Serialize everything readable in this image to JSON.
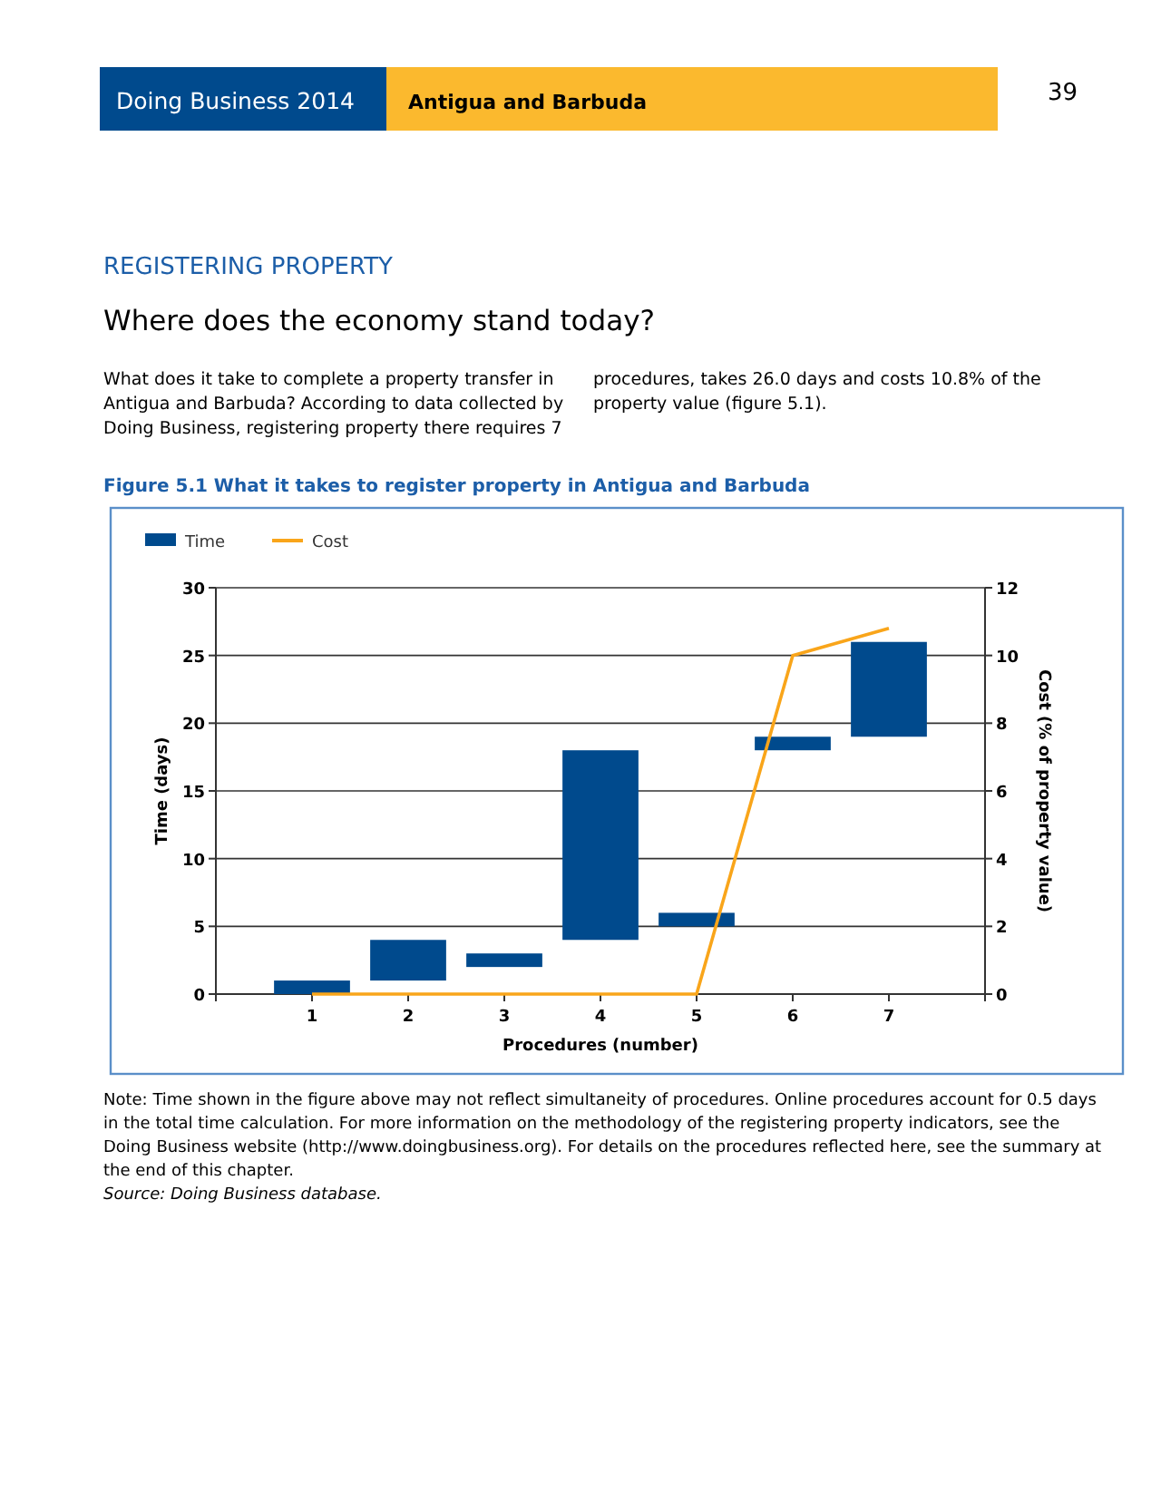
{
  "chart_data": {
    "type": "bar",
    "title": "Figure 5.1 What it takes to register property in Antigua and Barbuda",
    "annotations": [
      "Doing Business 2014",
      "Antigua and Barbuda",
      "39",
      "REGISTERING PROPERTY",
      "Where does the economy stand today?",
      "What does it take to complete a property transfer in Antigua and Barbuda? According to data collected by Doing Business, registering property there requires 7 procedures, takes 26.0 days and costs 10.8% of the property value (figure 5.1).",
      "Note: Time shown in the figure above may not reflect simultaneity of procedures. Online procedures account for 0.5 days in the total time calculation. For more information on the methodology of the registering property indicators, see the Doing Business website (http://www.doingbusiness.org). For details on the procedures reflected here, see the summary at the end of this chapter.",
      "Source: Doing Business database."
    ],
    "xlabel": "Procedures (number)",
    "ylabel": "Time (days)",
    "y2label": "Cost (% of property value)",
    "categories": [
      "1",
      "2",
      "3",
      "4",
      "5",
      "6",
      "7"
    ],
    "series": [
      {
        "name": "Time",
        "color": "#004a8d",
        "base": [
          0,
          1,
          2,
          4,
          5,
          18,
          19
        ],
        "values": [
          1,
          3,
          1,
          14,
          1,
          1,
          7
        ]
      },
      {
        "name": "Cost",
        "type": "line",
        "axis": "y2",
        "color": "#f9a51a",
        "values": [
          0,
          0,
          0,
          0,
          0,
          10,
          10.8
        ]
      }
    ],
    "ylim": [
      0,
      30
    ],
    "yticks": [
      0,
      5,
      10,
      15,
      20,
      25,
      30
    ],
    "y2lim": [
      0,
      12
    ],
    "y2ticks": [
      0,
      2,
      4,
      6,
      8,
      10,
      12
    ],
    "grid": "y",
    "legend": "top left",
    "marker": "none",
    "line_style": "solid"
  }
}
